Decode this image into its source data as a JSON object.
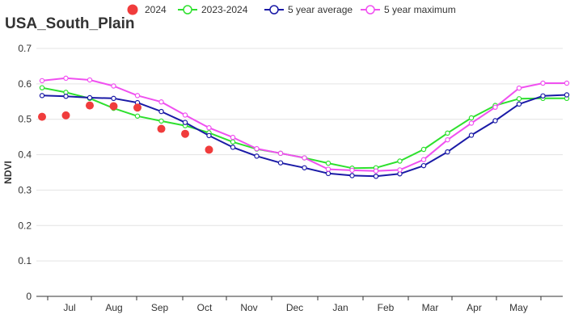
{
  "chart_data": {
    "type": "line",
    "title": "USA_South_Plain",
    "xlabel": "",
    "ylabel": "NDVI",
    "ylim": [
      0,
      0.7
    ],
    "y_ticks": [
      "0",
      "0.1",
      "0.2",
      "0.3",
      "0.4",
      "0.5",
      "0.6",
      "0.7"
    ],
    "month_labels": [
      "Jul",
      "Aug",
      "Sep",
      "Oct",
      "Nov",
      "Dec",
      "Jan",
      "Feb",
      "Mar",
      "Apr",
      "May"
    ],
    "grid": true,
    "legend_position": "top",
    "series": [
      {
        "name": "2024",
        "style": "scatter",
        "color": "#f03c3c",
        "values": [
          0.507,
          0.511,
          0.539,
          0.537,
          0.533,
          0.473,
          0.459,
          0.414
        ]
      },
      {
        "name": "2023-2024",
        "style": "line",
        "color": "#2ee02e",
        "values": [
          0.589,
          0.576,
          0.559,
          0.531,
          0.509,
          0.495,
          0.482,
          0.462,
          0.436,
          0.416,
          0.404,
          0.391,
          0.376,
          0.362,
          0.363,
          0.382,
          0.415,
          0.461,
          0.504,
          0.539,
          0.558,
          0.559,
          0.559
        ]
      },
      {
        "name": "5 year average",
        "style": "line",
        "color": "#1a1aa6",
        "values": [
          0.567,
          0.565,
          0.561,
          0.559,
          0.547,
          0.522,
          0.491,
          0.454,
          0.421,
          0.396,
          0.377,
          0.363,
          0.347,
          0.341,
          0.339,
          0.346,
          0.369,
          0.408,
          0.455,
          0.496,
          0.543,
          0.566,
          0.569
        ]
      },
      {
        "name": "5 year maximum",
        "style": "line",
        "color": "#f050f0",
        "values": [
          0.609,
          0.616,
          0.611,
          0.594,
          0.567,
          0.549,
          0.512,
          0.476,
          0.449,
          0.417,
          0.404,
          0.391,
          0.359,
          0.356,
          0.354,
          0.357,
          0.386,
          0.442,
          0.489,
          0.534,
          0.588,
          0.602,
          0.602
        ]
      }
    ]
  }
}
